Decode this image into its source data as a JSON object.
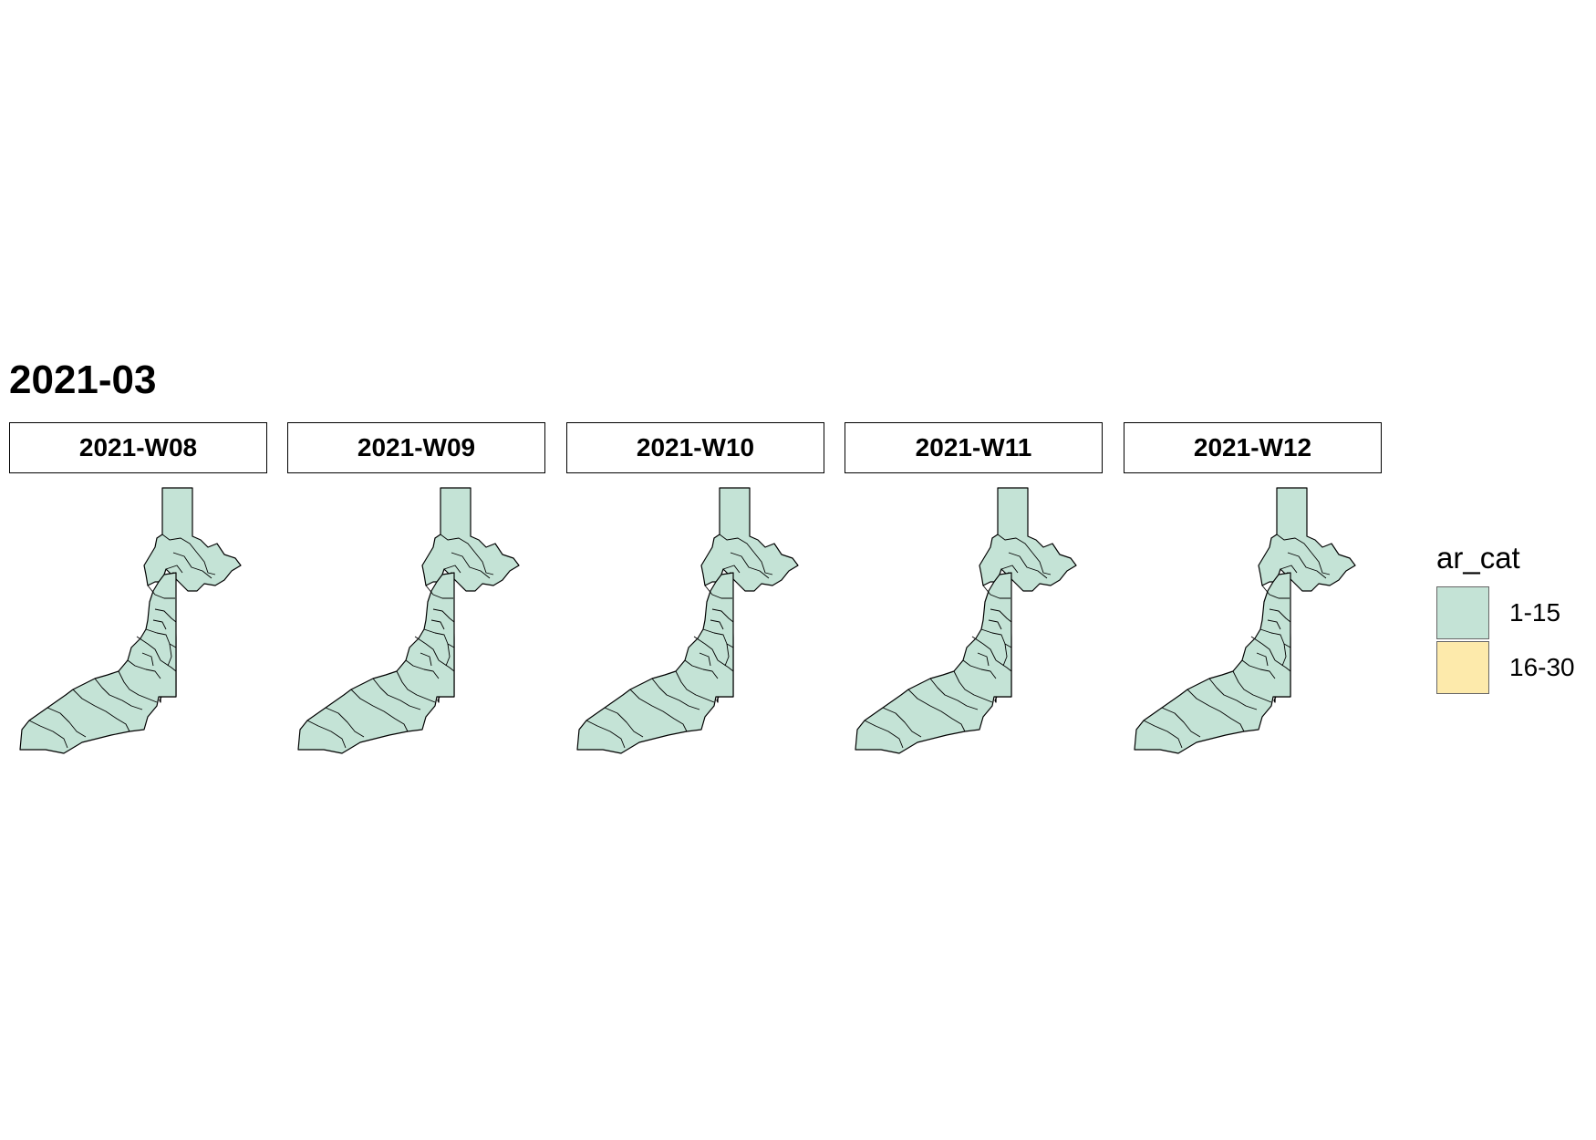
{
  "title": "2021-03",
  "facets": [
    {
      "label": "2021-W08",
      "category": "1-15"
    },
    {
      "label": "2021-W09",
      "category": "1-15"
    },
    {
      "label": "2021-W10",
      "category": "1-15"
    },
    {
      "label": "2021-W11",
      "category": "1-15"
    },
    {
      "label": "2021-W12",
      "category": "1-15"
    }
  ],
  "legend": {
    "title": "ar_cat",
    "items": [
      {
        "label": "1-15",
        "color": "#c4e3d6"
      },
      {
        "label": "16-30",
        "color": "#fdeaab"
      }
    ]
  }
}
